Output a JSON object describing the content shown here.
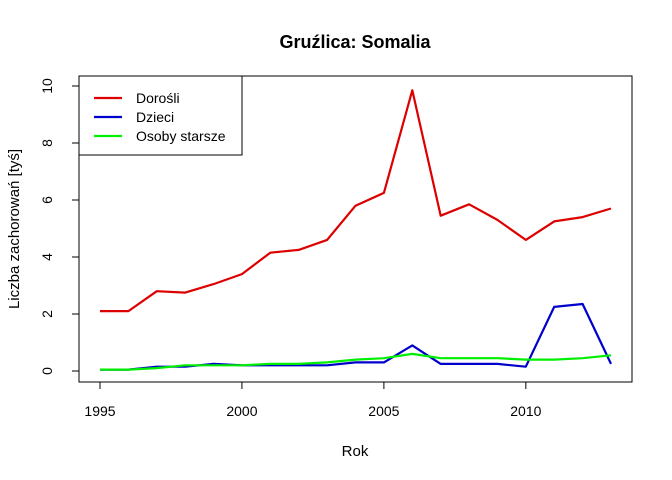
{
  "chart_data": {
    "type": "line",
    "title": "Gruźlica: Somalia",
    "xlabel": "Rok",
    "ylabel": "Liczba zachorowań [tyś]",
    "xlim": [
      1995,
      2013
    ],
    "ylim": [
      0,
      10
    ],
    "xticks": [
      1995,
      2000,
      2005,
      2010
    ],
    "yticks": [
      0,
      2,
      4,
      6,
      8,
      10
    ],
    "grid": false,
    "legend_position": "top-left",
    "x": [
      1995,
      1996,
      1997,
      1998,
      1999,
      2000,
      2001,
      2002,
      2003,
      2004,
      2005,
      2006,
      2007,
      2008,
      2009,
      2010,
      2011,
      2012,
      2013
    ],
    "series": [
      {
        "name": "Dorośli",
        "color": "#dd0000",
        "values": [
          2.1,
          2.1,
          2.8,
          2.75,
          3.05,
          3.4,
          4.15,
          4.25,
          4.6,
          5.8,
          6.25,
          9.85,
          5.45,
          5.85,
          5.3,
          4.6,
          5.25,
          5.4,
          5.7
        ]
      },
      {
        "name": "Dzieci",
        "color": "#0000cc",
        "values": [
          0.05,
          0.05,
          0.15,
          0.15,
          0.25,
          0.2,
          0.2,
          0.2,
          0.2,
          0.3,
          0.3,
          0.9,
          0.25,
          0.25,
          0.25,
          0.15,
          2.25,
          2.35,
          0.25
        ]
      },
      {
        "name": "Osoby starsze",
        "color": "#00ee00",
        "values": [
          0.05,
          0.05,
          0.1,
          0.2,
          0.2,
          0.2,
          0.25,
          0.25,
          0.3,
          0.4,
          0.45,
          0.6,
          0.45,
          0.45,
          0.45,
          0.4,
          0.4,
          0.45,
          0.55
        ]
      }
    ]
  }
}
